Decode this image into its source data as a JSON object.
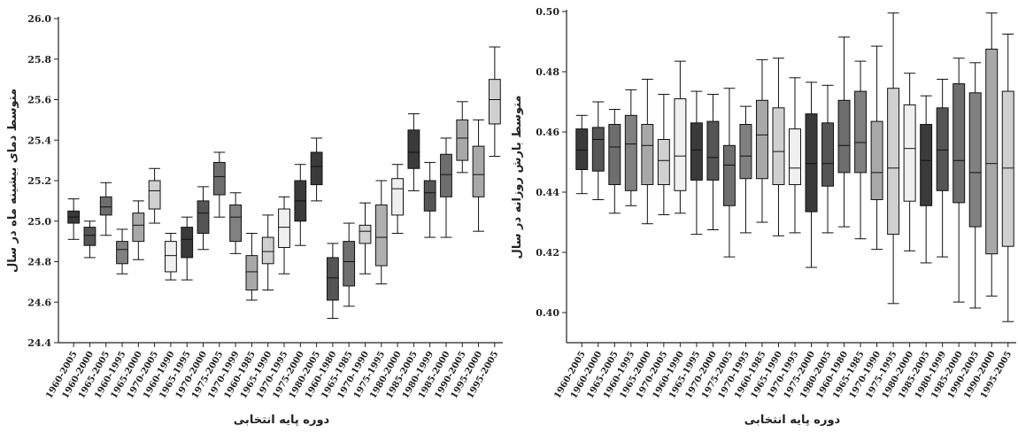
{
  "chart_data": [
    {
      "type": "boxplot",
      "ylabel": "متوسط دمای بیشینه ماه در سال",
      "xlabel": "دوره پایه انتخابی",
      "ylim": [
        24.4,
        26.0
      ],
      "yticks": [
        "24.4",
        "24.6",
        "24.8",
        "25.0",
        "25.2",
        "25.4",
        "25.6",
        "25.8",
        "26.0"
      ],
      "categories": [
        "1960-2005",
        "1960-2000",
        "1965-2005",
        "1960-1995",
        "1965-2000",
        "1970-2005",
        "1960-1990",
        "1965-1995",
        "1970-2000",
        "1975-2005",
        "1970-1999",
        "1960-1985",
        "1965-1990",
        "1970-1995",
        "1975-2000",
        "1980-2005",
        "1960-1980",
        "1965-1985",
        "1970-1990",
        "1975-1995",
        "1980-2000",
        "1985-2005",
        "1980-1999",
        "1985-2000",
        "1990-2005",
        "1995-2000",
        "1995-2005"
      ],
      "boxes": [
        {
          "min": 24.91,
          "q1": 24.99,
          "median": 25.02,
          "q3": 25.05,
          "max": 25.11,
          "color": "#3a3a3a"
        },
        {
          "min": 24.82,
          "q1": 24.88,
          "median": 24.93,
          "q3": 24.97,
          "max": 25.0,
          "color": "#555555"
        },
        {
          "min": 24.93,
          "q1": 25.03,
          "median": 25.07,
          "q3": 25.12,
          "max": 25.19,
          "color": "#6e6e6e"
        },
        {
          "min": 24.74,
          "q1": 24.79,
          "median": 24.86,
          "q3": 24.9,
          "max": 24.96,
          "color": "#808080"
        },
        {
          "min": 24.81,
          "q1": 24.9,
          "median": 24.98,
          "q3": 25.04,
          "max": 25.1,
          "color": "#a8a8a8"
        },
        {
          "min": 24.99,
          "q1": 25.06,
          "median": 25.15,
          "q3": 25.2,
          "max": 25.26,
          "color": "#d0d0d0"
        },
        {
          "min": 24.71,
          "q1": 24.75,
          "median": 24.83,
          "q3": 24.9,
          "max": 24.94,
          "color": "#f0f0f0"
        },
        {
          "min": 24.71,
          "q1": 24.82,
          "median": 24.91,
          "q3": 24.97,
          "max": 25.02,
          "color": "#3a3a3a"
        },
        {
          "min": 24.86,
          "q1": 24.94,
          "median": 25.04,
          "q3": 25.1,
          "max": 25.17,
          "color": "#555555"
        },
        {
          "min": 25.02,
          "q1": 25.13,
          "median": 25.22,
          "q3": 25.29,
          "max": 25.34,
          "color": "#6e6e6e"
        },
        {
          "min": 24.84,
          "q1": 24.9,
          "median": 25.02,
          "q3": 25.08,
          "max": 25.14,
          "color": "#808080"
        },
        {
          "min": 24.61,
          "q1": 24.66,
          "median": 24.75,
          "q3": 24.83,
          "max": 24.94,
          "color": "#a8a8a8"
        },
        {
          "min": 24.66,
          "q1": 24.79,
          "median": 24.85,
          "q3": 24.92,
          "max": 25.03,
          "color": "#d0d0d0"
        },
        {
          "min": 24.74,
          "q1": 24.87,
          "median": 24.97,
          "q3": 25.06,
          "max": 25.12,
          "color": "#f0f0f0"
        },
        {
          "min": 24.88,
          "q1": 25.0,
          "median": 25.1,
          "q3": 25.2,
          "max": 25.28,
          "color": "#3a3a3a"
        },
        {
          "min": 25.1,
          "q1": 25.18,
          "median": 25.27,
          "q3": 25.34,
          "max": 25.41,
          "color": "#3a3a3a"
        },
        {
          "min": 24.52,
          "q1": 24.61,
          "median": 24.72,
          "q3": 24.82,
          "max": 24.89,
          "color": "#555555"
        },
        {
          "min": 24.58,
          "q1": 24.68,
          "median": 24.8,
          "q3": 24.9,
          "max": 24.99,
          "color": "#6e6e6e"
        },
        {
          "min": 24.74,
          "q1": 24.89,
          "median": 24.95,
          "q3": 24.98,
          "max": 25.09,
          "color": "#d0d0d0"
        },
        {
          "min": 24.69,
          "q1": 24.78,
          "median": 24.92,
          "q3": 25.08,
          "max": 25.2,
          "color": "#b0b0b0"
        },
        {
          "min": 24.94,
          "q1": 25.03,
          "median": 25.16,
          "q3": 25.21,
          "max": 25.28,
          "color": "#f0f0f0"
        },
        {
          "min": 25.15,
          "q1": 25.26,
          "median": 25.34,
          "q3": 25.45,
          "max": 25.53,
          "color": "#3a3a3a"
        },
        {
          "min": 24.92,
          "q1": 25.05,
          "median": 25.14,
          "q3": 25.2,
          "max": 25.29,
          "color": "#555555"
        },
        {
          "min": 24.92,
          "q1": 25.12,
          "median": 25.23,
          "q3": 25.33,
          "max": 25.41,
          "color": "#6e6e6e"
        },
        {
          "min": 25.24,
          "q1": 25.3,
          "median": 25.41,
          "q3": 25.5,
          "max": 25.59,
          "color": "#a8a8a8"
        },
        {
          "min": 24.95,
          "q1": 25.12,
          "median": 25.23,
          "q3": 25.37,
          "max": 25.5,
          "color": "#a8a8a8"
        },
        {
          "min": 25.32,
          "q1": 25.48,
          "median": 25.6,
          "q3": 25.7,
          "max": 25.86,
          "color": "#d0d0d0"
        }
      ]
    },
    {
      "type": "boxplot",
      "ylabel": "متوسط بارش روزانه در سال",
      "xlabel": "دوره پایه انتخابی",
      "ylim": [
        0.39,
        0.5
      ],
      "yticks": [
        "0.40",
        "0.42",
        "0.44",
        "0.46",
        "0.48",
        "0.50"
      ],
      "categories": [
        "1960-2005",
        "1960-2000",
        "1965-2005",
        "1960-1995",
        "1965-2000",
        "1970-2005",
        "1960-1990",
        "1965-1995",
        "1970-2000",
        "1975-2005",
        "1970-1995",
        "1960-1985",
        "1965-1990",
        "1970-1995",
        "1975-2000",
        "1980-2005",
        "1960-1980",
        "1965-1985",
        "1970-1990",
        "1975-1995",
        "1980-2000",
        "1985-2005",
        "1980-1999",
        "1985-2000",
        "1990-2005",
        "1990-2000",
        "1995-2005"
      ],
      "boxes": [
        {
          "min": 0.4395,
          "q1": 0.4475,
          "median": 0.454,
          "q3": 0.461,
          "max": 0.4655,
          "color": "#3a3a3a"
        },
        {
          "min": 0.4375,
          "q1": 0.447,
          "median": 0.4575,
          "q3": 0.4615,
          "max": 0.47,
          "color": "#555555"
        },
        {
          "min": 0.433,
          "q1": 0.4425,
          "median": 0.455,
          "q3": 0.4625,
          "max": 0.4675,
          "color": "#6e6e6e"
        },
        {
          "min": 0.4355,
          "q1": 0.4405,
          "median": 0.456,
          "q3": 0.4655,
          "max": 0.474,
          "color": "#808080"
        },
        {
          "min": 0.4295,
          "q1": 0.4425,
          "median": 0.4555,
          "q3": 0.4625,
          "max": 0.4775,
          "color": "#a8a8a8"
        },
        {
          "min": 0.4325,
          "q1": 0.4425,
          "median": 0.4505,
          "q3": 0.4575,
          "max": 0.4725,
          "color": "#d0d0d0"
        },
        {
          "min": 0.433,
          "q1": 0.4405,
          "median": 0.452,
          "q3": 0.471,
          "max": 0.4835,
          "color": "#f0f0f0"
        },
        {
          "min": 0.426,
          "q1": 0.444,
          "median": 0.454,
          "q3": 0.463,
          "max": 0.4735,
          "color": "#3a3a3a"
        },
        {
          "min": 0.4275,
          "q1": 0.444,
          "median": 0.4515,
          "q3": 0.4635,
          "max": 0.4725,
          "color": "#555555"
        },
        {
          "min": 0.4185,
          "q1": 0.4355,
          "median": 0.449,
          "q3": 0.4555,
          "max": 0.4745,
          "color": "#6e6e6e"
        },
        {
          "min": 0.4265,
          "q1": 0.4445,
          "median": 0.452,
          "q3": 0.4625,
          "max": 0.4685,
          "color": "#808080"
        },
        {
          "min": 0.43,
          "q1": 0.4445,
          "median": 0.459,
          "q3": 0.4705,
          "max": 0.484,
          "color": "#a8a8a8"
        },
        {
          "min": 0.4255,
          "q1": 0.4425,
          "median": 0.4535,
          "q3": 0.468,
          "max": 0.4845,
          "color": "#d0d0d0"
        },
        {
          "min": 0.4265,
          "q1": 0.4425,
          "median": 0.448,
          "q3": 0.461,
          "max": 0.478,
          "color": "#f0f0f0"
        },
        {
          "min": 0.415,
          "q1": 0.4335,
          "median": 0.4495,
          "q3": 0.466,
          "max": 0.4765,
          "color": "#3a3a3a"
        },
        {
          "min": 0.4265,
          "q1": 0.442,
          "median": 0.4495,
          "q3": 0.463,
          "max": 0.4755,
          "color": "#555555"
        },
        {
          "min": 0.4285,
          "q1": 0.4465,
          "median": 0.4555,
          "q3": 0.4705,
          "max": 0.4915,
          "color": "#6e6e6e"
        },
        {
          "min": 0.4245,
          "q1": 0.4465,
          "median": 0.4565,
          "q3": 0.4735,
          "max": 0.4835,
          "color": "#808080"
        },
        {
          "min": 0.421,
          "q1": 0.4375,
          "median": 0.4465,
          "q3": 0.4635,
          "max": 0.4885,
          "color": "#a8a8a8"
        },
        {
          "min": 0.403,
          "q1": 0.426,
          "median": 0.448,
          "q3": 0.4745,
          "max": 0.4995,
          "color": "#d0d0d0"
        },
        {
          "min": 0.4205,
          "q1": 0.437,
          "median": 0.4545,
          "q3": 0.469,
          "max": 0.4795,
          "color": "#f0f0f0"
        },
        {
          "min": 0.4165,
          "q1": 0.4355,
          "median": 0.4505,
          "q3": 0.4625,
          "max": 0.472,
          "color": "#3a3a3a"
        },
        {
          "min": 0.4185,
          "q1": 0.4405,
          "median": 0.454,
          "q3": 0.468,
          "max": 0.4775,
          "color": "#555555"
        },
        {
          "min": 0.4035,
          "q1": 0.4365,
          "median": 0.4505,
          "q3": 0.476,
          "max": 0.4845,
          "color": "#6e6e6e"
        },
        {
          "min": 0.4015,
          "q1": 0.4285,
          "median": 0.4465,
          "q3": 0.473,
          "max": 0.483,
          "color": "#808080"
        },
        {
          "min": 0.4055,
          "q1": 0.4195,
          "median": 0.4495,
          "q3": 0.4875,
          "max": 0.4995,
          "color": "#a8a8a8"
        },
        {
          "min": 0.397,
          "q1": 0.422,
          "median": 0.448,
          "q3": 0.4735,
          "max": 0.4925,
          "color": "#d0d0d0"
        }
      ]
    }
  ]
}
